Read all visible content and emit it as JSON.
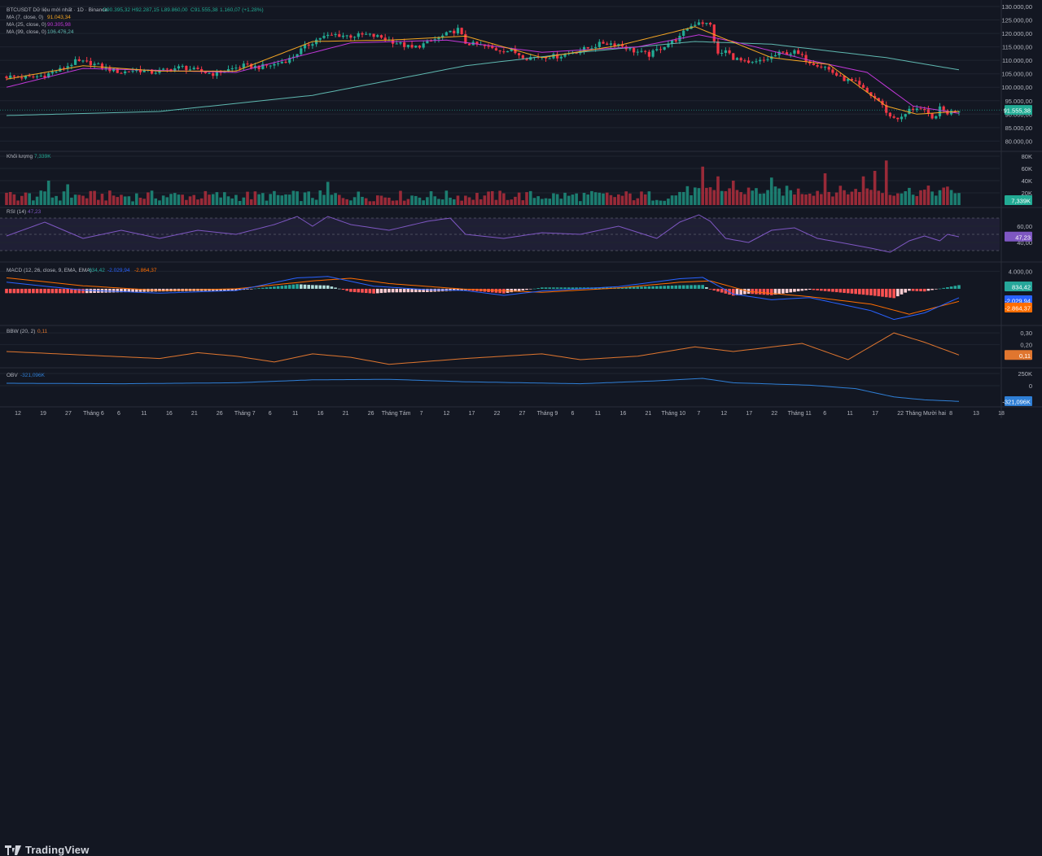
{
  "colors": {
    "bg": "#131722",
    "grid": "#1f2430",
    "up": "#22ab94",
    "down": "#f23645",
    "ma7": "#f5a623",
    "ma25": "#c238d9",
    "ma99": "#5fb8b0",
    "rsi": "#7e57c2",
    "macd": "#2962ff",
    "signal": "#ff6d00",
    "bbw": "#e0762f",
    "obv": "#2f7fd6",
    "text": "#b2b5be"
  },
  "footer": {
    "brand": "TradingView",
    "brand_icon": "tradingview-logo-icon"
  },
  "chart_data": [
    {
      "id": "price",
      "type": "candlestick",
      "title": "BTCUSDT Dữ liệu mới nhất · 1D · Binance",
      "ohlc": {
        "o": "O90.395,32",
        "h": "H92.287,15",
        "l": "L89.860,00",
        "c": "C91.555,38",
        "chg": "1.160,07 (+1.28%)"
      },
      "ma_legend": [
        {
          "label": "MA (7, close, 0)",
          "value": "91.043,34",
          "color": "#f5a623"
        },
        {
          "label": "MA (25, close, 0)",
          "value": "90.305,98",
          "color": "#c238d9"
        },
        {
          "label": "MA (99, close, 0)",
          "value": "106.476,24",
          "color": "#5fb8b0"
        }
      ],
      "ylim": [
        78000,
        130000
      ],
      "yticks": [
        130000,
        125000,
        120000,
        115000,
        110000,
        105000,
        100000,
        95000,
        90000,
        85000,
        80000
      ],
      "ytick_labels": [
        "130.000,00",
        "125.000,00",
        "120.000,00",
        "115.000,00",
        "110.000,00",
        "105.000,00",
        "100.000,00",
        "95.000,00",
        "90.000,00",
        "85.000,00",
        "80.000,00"
      ],
      "last_price": 91555.38,
      "last_label": "91.555,38",
      "close_points": [
        [
          0,
          104000
        ],
        [
          6,
          103500
        ],
        [
          10,
          104500
        ],
        [
          14,
          106500
        ],
        [
          18,
          109500
        ],
        [
          22,
          109000
        ],
        [
          26,
          107000
        ],
        [
          30,
          105500
        ],
        [
          34,
          106500
        ],
        [
          38,
          105500
        ],
        [
          42,
          106500
        ],
        [
          46,
          107500
        ],
        [
          50,
          106000
        ],
        [
          54,
          105000
        ],
        [
          58,
          106500
        ],
        [
          62,
          108000
        ],
        [
          66,
          107500
        ],
        [
          70,
          108500
        ],
        [
          74,
          110500
        ],
        [
          78,
          115000
        ],
        [
          82,
          118500
        ],
        [
          86,
          119500
        ],
        [
          90,
          119000
        ],
        [
          94,
          119500
        ],
        [
          98,
          118500
        ],
        [
          102,
          116500
        ],
        [
          106,
          114500
        ],
        [
          110,
          116500
        ],
        [
          114,
          119000
        ],
        [
          118,
          121500
        ],
        [
          120,
          116500
        ],
        [
          124,
          115500
        ],
        [
          128,
          114000
        ],
        [
          132,
          113500
        ],
        [
          136,
          111000
        ],
        [
          140,
          111500
        ],
        [
          144,
          111500
        ],
        [
          148,
          113000
        ],
        [
          152,
          114500
        ],
        [
          156,
          116500
        ],
        [
          160,
          116000
        ],
        [
          164,
          113500
        ],
        [
          168,
          112000
        ],
        [
          172,
          115500
        ],
        [
          176,
          118500
        ],
        [
          178,
          122000
        ],
        [
          181,
          124500
        ],
        [
          184,
          123000
        ],
        [
          186,
          112000
        ],
        [
          188,
          113500
        ],
        [
          190,
          111000
        ],
        [
          194,
          108500
        ],
        [
          198,
          110000
        ],
        [
          202,
          112500
        ],
        [
          206,
          113000
        ],
        [
          210,
          109500
        ],
        [
          214,
          107500
        ],
        [
          218,
          103500
        ],
        [
          222,
          101500
        ],
        [
          225,
          98000
        ],
        [
          228,
          95000
        ],
        [
          231,
          89000
        ],
        [
          234,
          88500
        ],
        [
          236,
          91500
        ],
        [
          238,
          92500
        ],
        [
          240,
          91000
        ],
        [
          242,
          88000
        ],
        [
          244,
          92000
        ],
        [
          246,
          90500
        ],
        [
          249,
          91555
        ]
      ],
      "ma99_points": [
        [
          0,
          89500
        ],
        [
          40,
          91000
        ],
        [
          80,
          97000
        ],
        [
          120,
          108000
        ],
        [
          150,
          113000
        ],
        [
          180,
          117000
        ],
        [
          200,
          116000
        ],
        [
          230,
          111000
        ],
        [
          249,
          106476
        ]
      ],
      "ma25_points": [
        [
          0,
          100000
        ],
        [
          20,
          107000
        ],
        [
          60,
          105500
        ],
        [
          90,
          116500
        ],
        [
          115,
          117500
        ],
        [
          140,
          113000
        ],
        [
          165,
          115000
        ],
        [
          181,
          119500
        ],
        [
          190,
          117000
        ],
        [
          210,
          110000
        ],
        [
          225,
          105500
        ],
        [
          237,
          93000
        ],
        [
          249,
          90306
        ]
      ],
      "ma7_points": [
        [
          0,
          103000
        ],
        [
          20,
          108000
        ],
        [
          40,
          106000
        ],
        [
          60,
          106000
        ],
        [
          80,
          117000
        ],
        [
          100,
          117500
        ],
        [
          120,
          119000
        ],
        [
          140,
          111000
        ],
        [
          160,
          115500
        ],
        [
          180,
          122500
        ],
        [
          186,
          119000
        ],
        [
          200,
          111000
        ],
        [
          215,
          108500
        ],
        [
          230,
          93000
        ],
        [
          238,
          90000
        ],
        [
          249,
          91043
        ]
      ]
    },
    {
      "id": "volume",
      "type": "bar",
      "title": "Khối lượng",
      "value": "7,339K",
      "ylim": [
        0,
        80
      ],
      "yticks": [
        80,
        60,
        40,
        20
      ],
      "ytick_labels": [
        "80K",
        "60K",
        "40K",
        "20K"
      ],
      "last_label": "7,339K",
      "spikes": [
        [
          11,
          40
        ],
        [
          16,
          34
        ],
        [
          84,
          38
        ],
        [
          182,
          63
        ],
        [
          186,
          47
        ],
        [
          190,
          40
        ],
        [
          200,
          45
        ],
        [
          214,
          52
        ],
        [
          224,
          47
        ],
        [
          227,
          56
        ],
        [
          230,
          73
        ]
      ]
    },
    {
      "id": "rsi",
      "type": "line",
      "title": "RSI (14)",
      "value": "47,23",
      "ylim": [
        20,
        80
      ],
      "yticks": [
        60,
        40
      ],
      "ytick_labels": [
        "60,00",
        "40,00"
      ],
      "bands": [
        70,
        50,
        30
      ],
      "last_label": "47,23",
      "points": [
        [
          0,
          48
        ],
        [
          10,
          65
        ],
        [
          20,
          45
        ],
        [
          30,
          55
        ],
        [
          40,
          45
        ],
        [
          50,
          55
        ],
        [
          60,
          50
        ],
        [
          70,
          62
        ],
        [
          76,
          72
        ],
        [
          80,
          60
        ],
        [
          84,
          72
        ],
        [
          90,
          62
        ],
        [
          100,
          55
        ],
        [
          110,
          66
        ],
        [
          116,
          70
        ],
        [
          120,
          50
        ],
        [
          130,
          45
        ],
        [
          140,
          52
        ],
        [
          150,
          50
        ],
        [
          160,
          60
        ],
        [
          170,
          45
        ],
        [
          176,
          65
        ],
        [
          181,
          74
        ],
        [
          184,
          66
        ],
        [
          188,
          45
        ],
        [
          194,
          40
        ],
        [
          200,
          55
        ],
        [
          206,
          58
        ],
        [
          212,
          45
        ],
        [
          218,
          40
        ],
        [
          226,
          33
        ],
        [
          231,
          28
        ],
        [
          236,
          42
        ],
        [
          240,
          48
        ],
        [
          244,
          42
        ],
        [
          246,
          50
        ],
        [
          249,
          47
        ]
      ]
    },
    {
      "id": "macd",
      "type": "line+histogram",
      "title": "MACD (12, 26, close, 9, EMA, EMA)",
      "values": [
        {
          "v": "834,42",
          "color": "#26a69a"
        },
        {
          "v": "-2.029,94",
          "color": "#2962ff"
        },
        {
          "v": "-2.864,37",
          "color": "#ff6d00"
        }
      ],
      "ylim": [
        -8000,
        5000
      ],
      "yticks": [
        4000
      ],
      "ytick_labels": [
        "4.000,00"
      ],
      "last_labels": [
        "834,42",
        "-2.029,94",
        "-2.864,37"
      ],
      "macd_points": [
        [
          0,
          1500
        ],
        [
          20,
          -300
        ],
        [
          40,
          -1000
        ],
        [
          60,
          -400
        ],
        [
          76,
          2500
        ],
        [
          84,
          2800
        ],
        [
          96,
          600
        ],
        [
          110,
          -200
        ],
        [
          120,
          -400
        ],
        [
          130,
          -1500
        ],
        [
          140,
          -500
        ],
        [
          160,
          500
        ],
        [
          176,
          2300
        ],
        [
          182,
          2600
        ],
        [
          190,
          -1200
        ],
        [
          200,
          -2500
        ],
        [
          210,
          -2000
        ],
        [
          226,
          -5000
        ],
        [
          232,
          -7000
        ],
        [
          240,
          -5500
        ],
        [
          249,
          -2030
        ]
      ],
      "signal_points": [
        [
          0,
          2500
        ],
        [
          20,
          700
        ],
        [
          40,
          -400
        ],
        [
          60,
          0
        ],
        [
          80,
          1800
        ],
        [
          90,
          2400
        ],
        [
          100,
          1200
        ],
        [
          120,
          -100
        ],
        [
          140,
          -800
        ],
        [
          160,
          200
        ],
        [
          176,
          1500
        ],
        [
          184,
          1800
        ],
        [
          194,
          -600
        ],
        [
          210,
          -1800
        ],
        [
          226,
          -3500
        ],
        [
          236,
          -5800
        ],
        [
          249,
          -2864
        ]
      ]
    },
    {
      "id": "bbw",
      "type": "line",
      "title": "BBW (20, 2)",
      "value": "0,11",
      "ylim": [
        0,
        0.35
      ],
      "yticks": [
        0.3,
        0.2
      ],
      "ytick_labels": [
        "0,30",
        "0,20"
      ],
      "last_label": "0,11",
      "points": [
        [
          0,
          0.14
        ],
        [
          20,
          0.11
        ],
        [
          40,
          0.08
        ],
        [
          50,
          0.13
        ],
        [
          60,
          0.1
        ],
        [
          70,
          0.05
        ],
        [
          80,
          0.12
        ],
        [
          90,
          0.09
        ],
        [
          100,
          0.03
        ],
        [
          120,
          0.08
        ],
        [
          140,
          0.12
        ],
        [
          150,
          0.07
        ],
        [
          165,
          0.1
        ],
        [
          180,
          0.18
        ],
        [
          190,
          0.14
        ],
        [
          208,
          0.21
        ],
        [
          220,
          0.07
        ],
        [
          232,
          0.3
        ],
        [
          240,
          0.22
        ],
        [
          249,
          0.11
        ]
      ]
    },
    {
      "id": "obv",
      "type": "line",
      "title": "OBV",
      "value": "-321,096K",
      "ylim": [
        -400,
        300
      ],
      "yticks": [
        250,
        0
      ],
      "ytick_labels": [
        "250K",
        "0"
      ],
      "last_label": "-321,096K",
      "points": [
        [
          0,
          50
        ],
        [
          30,
          40
        ],
        [
          60,
          60
        ],
        [
          80,
          120
        ],
        [
          100,
          130
        ],
        [
          120,
          80
        ],
        [
          150,
          40
        ],
        [
          170,
          100
        ],
        [
          182,
          150
        ],
        [
          190,
          60
        ],
        [
          210,
          10
        ],
        [
          222,
          -60
        ],
        [
          232,
          -230
        ],
        [
          240,
          -290
        ],
        [
          249,
          -321
        ]
      ]
    },
    {
      "id": "time-axis",
      "type": "axis",
      "labels": [
        "12",
        "19",
        "27",
        "Tháng 6",
        "6",
        "11",
        "16",
        "21",
        "26",
        "Tháng 7",
        "6",
        "11",
        "16",
        "21",
        "26",
        "Tháng Tám",
        "7",
        "12",
        "17",
        "22",
        "27",
        "Tháng 9",
        "6",
        "11",
        "16",
        "21",
        "Tháng 10",
        "7",
        "12",
        "17",
        "22",
        "Tháng 11",
        "6",
        "11",
        "17",
        "22",
        "Tháng Mười hai",
        "8",
        "13",
        "18"
      ]
    }
  ]
}
